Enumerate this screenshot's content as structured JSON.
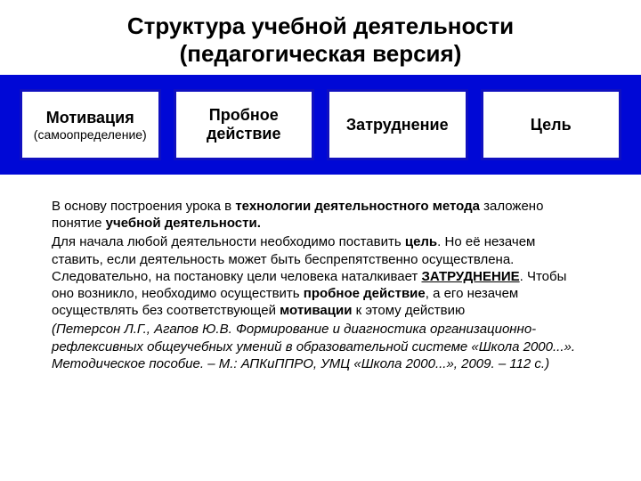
{
  "colors": {
    "blue_band": "#0008d6",
    "box_border": "#1010c0",
    "text": "#000000",
    "box_bg": "#ffffff"
  },
  "layout": {
    "title_fontsize": 26,
    "box_fontsize": 18,
    "box_sub_fontsize": 14,
    "body_fontsize": 15,
    "band_height": 112,
    "band_padding_x": 22,
    "band_padding_y": 16,
    "box_border_width": 3,
    "body_padding_x": 58,
    "body_padding_top": 26,
    "body_line_height": 1.28
  },
  "title": {
    "line1": "Структура учебной деятельности",
    "line2": "(педагогическая версия)"
  },
  "boxes": [
    {
      "title": "Мотивация",
      "sub": "(самоопределение)"
    },
    {
      "title": "Пробное действие",
      "sub": ""
    },
    {
      "title": "Затруднение",
      "sub": ""
    },
    {
      "title": "Цель",
      "sub": ""
    }
  ],
  "body": {
    "p1_a": "В основу построения урока в ",
    "p1_b": "технологии деятельностного метода",
    "p1_c": " заложено понятие ",
    "p1_d": "учебной деятельности.",
    "p2_a": "Для начала любой деятельности необходимо поставить ",
    "p2_b": "цель",
    "p2_c": ". Но её незачем ставить, если деятельность может быть беспрепятственно осуществлена. Следовательно, на постановку цели человека наталкивает ",
    "p2_d": "ЗАТРУДНЕНИЕ",
    "p2_e": ". Чтобы оно возникло, необходимо осуществить ",
    "p2_f": "пробное действие",
    "p2_g": ", а его незачем осуществлять без соответствующей ",
    "p2_h": "мотивации",
    "p2_i": " к этому действию",
    "citation": "(Петерсон Л.Г., Агапов Ю.В. Формирование и диагностика организационно-рефлексивных общеучебных умений в образовательной системе «Школа 2000...». Методическое пособие.  – М.: АПКиППРО, УМЦ «Школа 2000...», 2009. – 112 с.)"
  }
}
